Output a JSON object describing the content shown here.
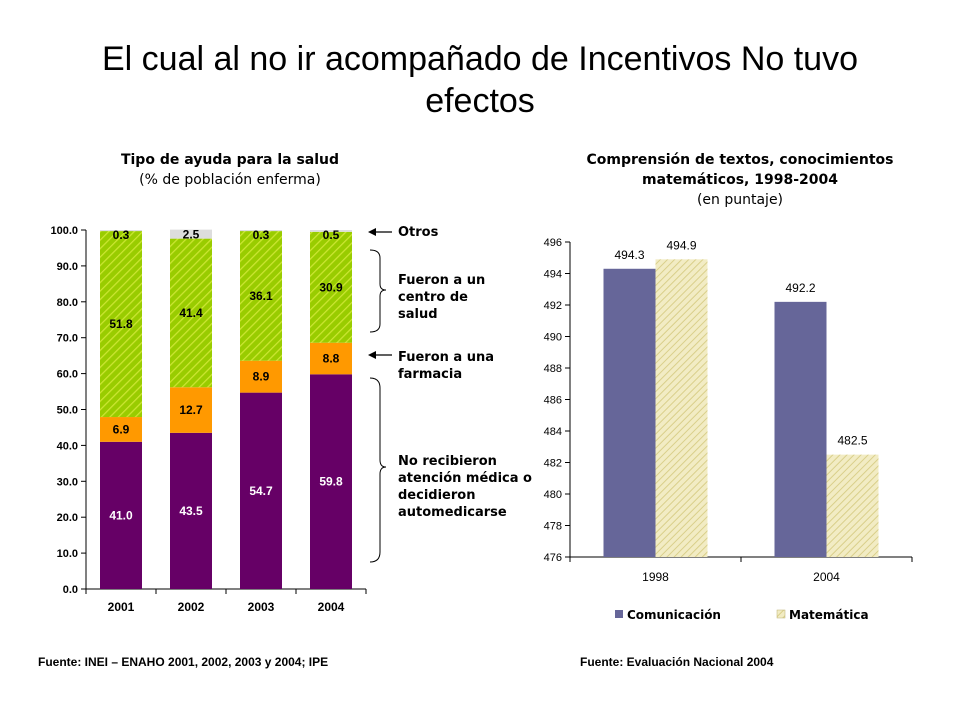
{
  "slide": {
    "title": "El cual al no ir acompañado de Incentivos No tuvo efectos"
  },
  "left_chart": {
    "title": "Tipo de ayuda para la salud",
    "subtitle": "(% de población enferma)",
    "source": "Fuente: INEI – ENAHO 2001, 2002, 2003 y 2004; IPE",
    "annotations": {
      "otros": "Otros",
      "centro": "Fueron  a un centro de salud",
      "farmacia": "Fueron a una farmacia",
      "no_atencion": "No recibieron atención médica o decidieron automedicarse"
    }
  },
  "right_chart": {
    "title": "Comprensión de textos, conocimientos matemáticos, 1998-2004",
    "subtitle": "(en puntaje)",
    "source": "Fuente: Evaluación Nacional 2004"
  },
  "colors": {
    "no_atencion": "#660066",
    "farmacia": "#ff9900",
    "centro": "#99cc00",
    "otros": "#dddddd",
    "comunicacion": "#666699",
    "matematica": "#e8e0a8"
  },
  "chart_data": [
    {
      "type": "bar",
      "stacked": true,
      "categories": [
        "2001",
        "2002",
        "2003",
        "2004"
      ],
      "series": [
        {
          "values": [
            41.0,
            43.5,
            54.7,
            59.8
          ],
          "labels": [
            "41.0",
            "43.5",
            "54.7",
            "59.8"
          ]
        },
        {
          "values": [
            6.9,
            12.7,
            8.9,
            8.8
          ],
          "labels": [
            "6.9",
            "12.7",
            "8.9",
            "8.8"
          ]
        },
        {
          "values": [
            51.8,
            41.4,
            36.1,
            30.9
          ],
          "labels": [
            "51.8",
            "41.4",
            "36.1",
            "30.9"
          ]
        },
        {
          "values": [
            0.3,
            2.5,
            0.3,
            0.5
          ],
          "labels": [
            "0.3",
            "2.5",
            "0.3",
            "0.5"
          ]
        }
      ],
      "ylim": [
        0,
        100
      ],
      "yticks": [
        "0.0",
        "10.0",
        "20.0",
        "30.0",
        "40.0",
        "50.0",
        "60.0",
        "70.0",
        "80.0",
        "90.0",
        "100.0"
      ],
      "grid": false
    },
    {
      "type": "bar",
      "categories": [
        "1998",
        "2004"
      ],
      "series": [
        {
          "name": "Comunicación",
          "values": [
            494.3,
            492.2
          ],
          "labels": [
            "494.3",
            "492.2"
          ]
        },
        {
          "name": "Matemática",
          "values": [
            494.9,
            482.5
          ],
          "labels": [
            "494.9",
            "482.5"
          ]
        }
      ],
      "ylim": [
        476,
        496
      ],
      "yticks": [
        "476",
        "478",
        "480",
        "482",
        "484",
        "486",
        "488",
        "490",
        "492",
        "494",
        "496"
      ],
      "grid": false,
      "legend": "bottom"
    }
  ]
}
